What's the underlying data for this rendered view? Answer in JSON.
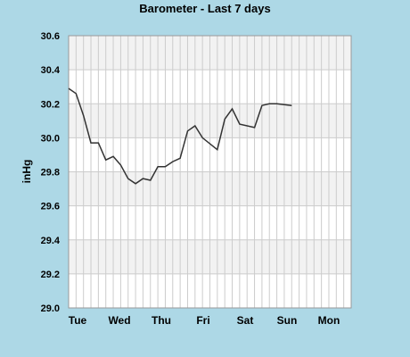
{
  "chart_data": {
    "type": "line",
    "title": "Barometer - Last 7 days",
    "xlabel": "",
    "ylabel": "inHg",
    "ylim": [
      29.0,
      30.6
    ],
    "yticks": [
      "29.0",
      "29.2",
      "29.4",
      "29.6",
      "29.8",
      "30.0",
      "30.2",
      "30.4",
      "30.6"
    ],
    "day_labels": [
      "Tue",
      "Wed",
      "Thu",
      "Fri",
      "Sat",
      "Sun",
      "Mon"
    ],
    "x_sample_count": 38,
    "grid": true,
    "colors": {
      "background": "#add8e6",
      "plot_band_light": "#ffffff",
      "plot_band_dark": "#f2f2f2",
      "grid": "#cccccc",
      "line": "#333333"
    },
    "series": [
      {
        "values": [
          30.29,
          30.26,
          30.13,
          29.97,
          29.97,
          29.87,
          29.89,
          29.84,
          29.76,
          29.73,
          29.76,
          29.75,
          29.83,
          29.83,
          29.86,
          29.88,
          30.04,
          30.07,
          30.0,
          29.93,
          30.11,
          30.17,
          30.08,
          30.06,
          30.19,
          30.2,
          30.2,
          30.19
        ]
      }
    ],
    "x_index": [
      0,
      1,
      2,
      3,
      4,
      5,
      6,
      7,
      8,
      9,
      10,
      11,
      12,
      13,
      14,
      15,
      16,
      17,
      18,
      20,
      21,
      22,
      23,
      25,
      26,
      27,
      28,
      30
    ]
  }
}
